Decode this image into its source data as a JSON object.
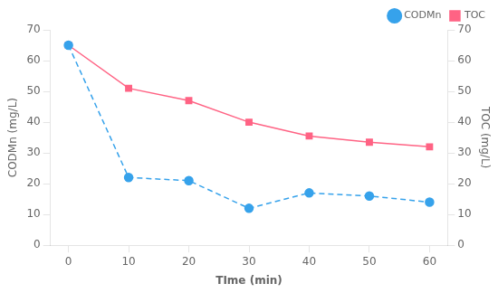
{
  "chart_data": {
    "type": "line",
    "x": [
      0,
      10,
      20,
      30,
      40,
      50,
      60
    ],
    "series": [
      {
        "name": "CODMn",
        "values": [
          65,
          22,
          21,
          12,
          17,
          16,
          14
        ],
        "marker": "circle",
        "line_style": "dashed"
      },
      {
        "name": "TOC",
        "values": [
          65,
          51,
          47,
          40,
          35.5,
          33.5,
          32
        ],
        "axis": "y2",
        "marker": "square",
        "line_style": "solid"
      }
    ],
    "xlabel": "TIme (min)",
    "ylabel": "CODMn (mg/L)",
    "y2label": "TOC (mg/L)",
    "xlim": [
      -3,
      63
    ],
    "xticks": [
      0,
      10,
      20,
      30,
      40,
      50,
      60
    ],
    "ylim": [
      0,
      70
    ],
    "yticks": [
      0,
      10,
      20,
      30,
      40,
      50,
      60,
      70
    ],
    "y2lim": [
      0,
      70
    ],
    "y2ticks": [
      0,
      10,
      20,
      30,
      40,
      50,
      60,
      70
    ],
    "grid": false,
    "legend": "upper right"
  }
}
